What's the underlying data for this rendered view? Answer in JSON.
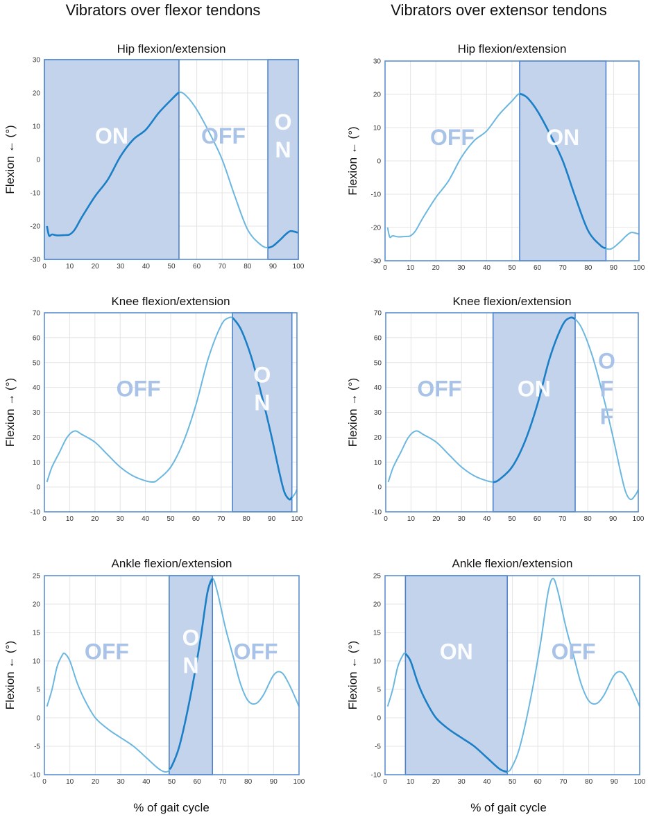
{
  "figure": {
    "column_titles": [
      "Vibrators over flexor tendons",
      "Vibrators over extensor tendons"
    ],
    "x_axis_label": "% of gait cycle"
  },
  "chart_data": [
    {
      "type": "line",
      "id": "hip-flexor",
      "title": "Hip flexion/extension",
      "ylabel": "Flexion ← (°)",
      "xlabel": "",
      "xlim": [
        0,
        100
      ],
      "ylim": [
        -30,
        30
      ],
      "xticks": [
        0,
        10,
        20,
        30,
        40,
        50,
        60,
        70,
        80,
        90,
        100
      ],
      "yticks": [
        -30,
        -20,
        -10,
        0,
        10,
        20,
        30
      ],
      "x": [
        1,
        1.5,
        2,
        3,
        5,
        8,
        10,
        12,
        15,
        20,
        25,
        30,
        35,
        40,
        45,
        50,
        53,
        56,
        60,
        65,
        70,
        75,
        80,
        85,
        88,
        90,
        93,
        95,
        97,
        100
      ],
      "y": [
        -20,
        -22,
        -23,
        -22.5,
        -22.8,
        -22.7,
        -22.5,
        -21,
        -17,
        -11,
        -6,
        1,
        6,
        9,
        14,
        18,
        20.2,
        19,
        15,
        8,
        0,
        -11,
        -21,
        -25.5,
        -26.5,
        -26,
        -24,
        -22.5,
        -21.5,
        -22
      ],
      "regions": [
        {
          "start": 0,
          "end": 53,
          "label": "ON"
        },
        {
          "start": 53,
          "end": 88,
          "label": "OFF"
        },
        {
          "start": 88,
          "end": 100,
          "label": "O\nN"
        }
      ]
    },
    {
      "type": "line",
      "id": "hip-extensor",
      "title": "Hip flexion/extension",
      "ylabel": "Flexion ← (°)",
      "xlabel": "",
      "xlim": [
        0,
        100
      ],
      "ylim": [
        -30,
        30
      ],
      "xticks": [
        0,
        10,
        20,
        30,
        40,
        50,
        60,
        70,
        80,
        90,
        100
      ],
      "yticks": [
        -30,
        -20,
        -10,
        0,
        10,
        20,
        30
      ],
      "x": [
        1,
        1.5,
        2,
        3,
        5,
        8,
        10,
        12,
        15,
        20,
        25,
        30,
        35,
        40,
        45,
        50,
        53,
        56,
        60,
        65,
        70,
        75,
        80,
        85,
        88,
        90,
        93,
        95,
        97,
        100
      ],
      "y": [
        -20,
        -22,
        -23,
        -22.5,
        -22.8,
        -22.7,
        -22.5,
        -21,
        -17,
        -11,
        -6,
        1,
        6,
        9,
        14,
        18,
        20.2,
        19,
        15,
        8,
        0,
        -11,
        -21,
        -25.5,
        -26.5,
        -26,
        -24,
        -22.5,
        -21.5,
        -22
      ],
      "regions": [
        {
          "start": 0,
          "end": 53,
          "label": "OFF"
        },
        {
          "start": 53,
          "end": 87,
          "label": "ON"
        },
        {
          "start": 87,
          "end": 100,
          "label": ""
        }
      ]
    },
    {
      "type": "line",
      "id": "knee-flexor",
      "title": "Knee flexion/extension",
      "ylabel": "Flexion → (°)",
      "xlabel": "",
      "xlim": [
        0,
        100
      ],
      "ylim": [
        -10,
        70
      ],
      "xticks": [
        0,
        10,
        20,
        30,
        40,
        50,
        60,
        70,
        80,
        90,
        100
      ],
      "yticks": [
        -10,
        0,
        10,
        20,
        30,
        40,
        50,
        60,
        70
      ],
      "x": [
        1,
        3,
        6,
        9,
        12,
        15,
        20,
        25,
        30,
        35,
        40,
        43,
        45,
        50,
        55,
        60,
        65,
        70,
        73,
        75,
        78,
        82,
        86,
        90,
        93,
        95,
        97,
        99,
        100
      ],
      "y": [
        2,
        8,
        14,
        20,
        22.5,
        21,
        18,
        13,
        8,
        4.5,
        2.5,
        2,
        3,
        8,
        18,
        33,
        52,
        65,
        68,
        67.5,
        63,
        52,
        37,
        20,
        6,
        -2,
        -5,
        -3,
        -1
      ],
      "regions": [
        {
          "start": 0,
          "end": 74.5,
          "label": "OFF"
        },
        {
          "start": 74.5,
          "end": 98,
          "label": "O\nN"
        },
        {
          "start": 98,
          "end": 100,
          "label": ""
        }
      ]
    },
    {
      "type": "line",
      "id": "knee-extensor",
      "title": "Knee flexion/extension",
      "ylabel": "Flexion → (°)",
      "xlabel": "",
      "xlim": [
        0,
        100
      ],
      "ylim": [
        -10,
        70
      ],
      "xticks": [
        0,
        10,
        20,
        30,
        40,
        50,
        60,
        70,
        80,
        90,
        100
      ],
      "yticks": [
        -10,
        0,
        10,
        20,
        30,
        40,
        50,
        60,
        70
      ],
      "x": [
        1,
        3,
        6,
        9,
        12,
        15,
        20,
        25,
        30,
        35,
        40,
        43,
        45,
        50,
        55,
        60,
        65,
        70,
        73,
        75,
        78,
        82,
        86,
        90,
        93,
        95,
        97,
        99,
        100
      ],
      "y": [
        2,
        8,
        14,
        20,
        22.5,
        21,
        18,
        13,
        8,
        4.5,
        2.5,
        2,
        3,
        8,
        18,
        33,
        52,
        65,
        68,
        67.5,
        63,
        52,
        37,
        20,
        6,
        -2,
        -5,
        -3,
        -1
      ],
      "regions": [
        {
          "start": 0,
          "end": 42.5,
          "label": "OFF"
        },
        {
          "start": 42.5,
          "end": 75,
          "label": "ON"
        },
        {
          "start": 75,
          "end": 100,
          "label": "O\nF\nF"
        }
      ]
    },
    {
      "type": "line",
      "id": "ankle-flexor",
      "title": "Ankle flexion/extension",
      "ylabel": "Flexion ← (°)",
      "xlabel": "% of gait cycle",
      "xlim": [
        0,
        100
      ],
      "ylim": [
        -10,
        25
      ],
      "xticks": [
        0,
        10,
        20,
        30,
        40,
        50,
        60,
        70,
        80,
        90,
        100
      ],
      "yticks": [
        -10,
        -5,
        0,
        5,
        10,
        15,
        20,
        25
      ],
      "x": [
        1,
        3,
        5,
        7,
        8,
        10,
        13,
        16,
        20,
        25,
        30,
        35,
        40,
        45,
        48,
        50,
        53,
        57,
        61,
        64,
        66,
        68,
        71,
        74,
        77,
        80,
        83,
        86,
        90,
        93,
        96,
        100
      ],
      "y": [
        2,
        5,
        9,
        11,
        11.3,
        10,
        6,
        3,
        0,
        -2,
        -3.5,
        -5,
        -7,
        -9,
        -9.5,
        -8.5,
        -5,
        3,
        13,
        22,
        24.5,
        22,
        16,
        11,
        6,
        3,
        2.5,
        4,
        7.5,
        8,
        6,
        2
      ],
      "regions": [
        {
          "start": 0,
          "end": 49,
          "label": "OFF"
        },
        {
          "start": 49,
          "end": 66,
          "label": "O\nN"
        },
        {
          "start": 66,
          "end": 100,
          "label": "OFF"
        }
      ]
    },
    {
      "type": "line",
      "id": "ankle-extensor",
      "title": "Ankle flexion/extension",
      "ylabel": "Flexion ← (°)",
      "xlabel": "% of gait cycle",
      "xlim": [
        0,
        100
      ],
      "ylim": [
        -10,
        25
      ],
      "xticks": [
        0,
        10,
        20,
        30,
        40,
        50,
        60,
        70,
        80,
        90,
        100
      ],
      "yticks": [
        -10,
        -5,
        0,
        5,
        10,
        15,
        20,
        25
      ],
      "x": [
        1,
        3,
        5,
        7,
        8,
        10,
        13,
        16,
        20,
        25,
        30,
        35,
        40,
        45,
        48,
        50,
        53,
        57,
        61,
        64,
        66,
        68,
        71,
        74,
        77,
        80,
        83,
        86,
        90,
        93,
        96,
        100
      ],
      "y": [
        2,
        5,
        9,
        11,
        11.3,
        10,
        6,
        3,
        0,
        -2,
        -3.5,
        -5,
        -7,
        -9,
        -9.5,
        -8.5,
        -5,
        3,
        13,
        22,
        24.5,
        22,
        16,
        11,
        6,
        3,
        2.5,
        4,
        7.5,
        8,
        6,
        2
      ],
      "regions": [
        {
          "start": 0,
          "end": 8,
          "label": ""
        },
        {
          "start": 8,
          "end": 48,
          "label": "ON"
        },
        {
          "start": 48,
          "end": 100,
          "label": "OFF"
        }
      ]
    }
  ]
}
